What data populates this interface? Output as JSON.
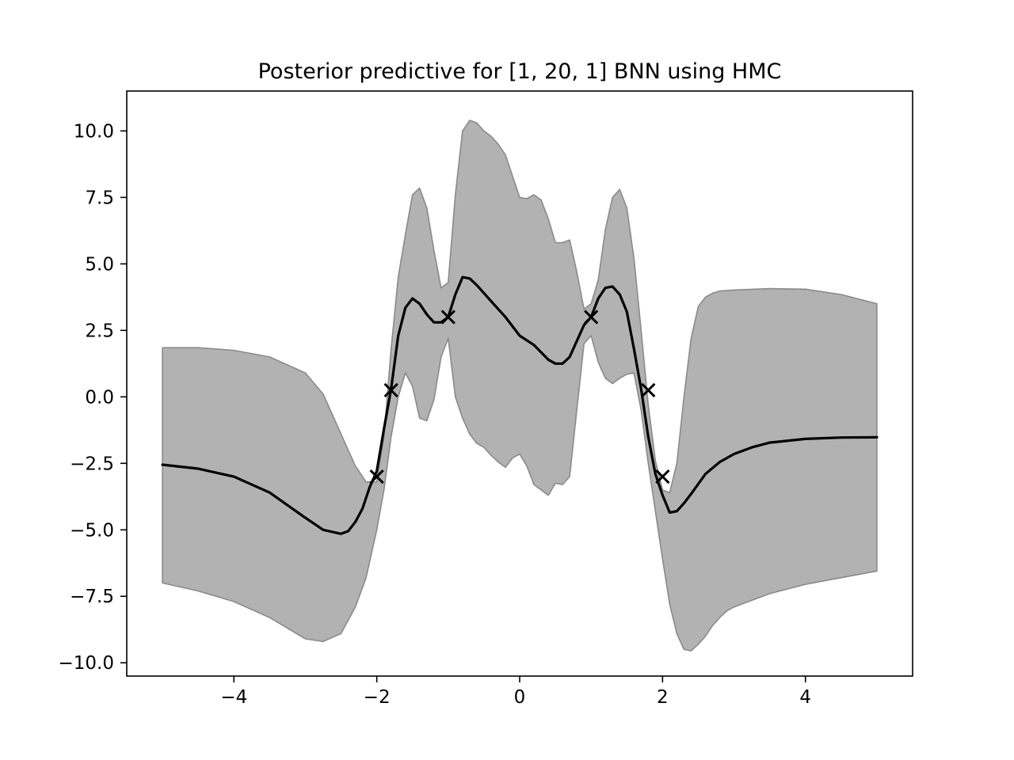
{
  "chart_data": {
    "type": "line",
    "title": "Posterior predictive for [1, 20, 1] BNN using HMC",
    "xlabel": "",
    "ylabel": "",
    "xlim": [
      -5.5,
      5.5
    ],
    "ylim": [
      -10.5,
      11.5
    ],
    "grid": false,
    "legend": "none",
    "xticks": [
      -4,
      -2,
      0,
      2,
      4
    ],
    "xtick_labels": [
      "−4",
      "−2",
      "0",
      "2",
      "4"
    ],
    "yticks": [
      -10,
      -7.5,
      -5,
      -2.5,
      0,
      2.5,
      5,
      7.5,
      10
    ],
    "ytick_labels": [
      "−10.0",
      "−7.5",
      "−5.0",
      "−2.5",
      "0.0",
      "2.5",
      "5.0",
      "7.5",
      "10.0"
    ],
    "colors": {
      "mean": "#000000",
      "band_fill": "#b2b2b2",
      "band_edge": "#8a8a8a",
      "observations": "#000000"
    },
    "band_upper": {
      "x": [
        -5.0,
        -4.5,
        -4.0,
        -3.5,
        -3.0,
        -2.75,
        -2.5,
        -2.3,
        -2.15,
        -2.0,
        -1.9,
        -1.8,
        -1.7,
        -1.6,
        -1.5,
        -1.4,
        -1.3,
        -1.2,
        -1.1,
        -1.0,
        -0.9,
        -0.8,
        -0.7,
        -0.6,
        -0.5,
        -0.4,
        -0.3,
        -0.2,
        -0.1,
        0.0,
        0.1,
        0.2,
        0.3,
        0.4,
        0.5,
        0.6,
        0.7,
        0.8,
        0.9,
        1.0,
        1.1,
        1.2,
        1.3,
        1.4,
        1.5,
        1.6,
        1.7,
        1.8,
        1.9,
        2.0,
        2.1,
        2.2,
        2.3,
        2.4,
        2.5,
        2.6,
        2.7,
        2.8,
        2.9,
        3.0,
        3.5,
        4.0,
        4.5,
        5.0
      ],
      "y": [
        1.85,
        1.85,
        1.75,
        1.5,
        0.9,
        0.1,
        -1.4,
        -2.6,
        -3.2,
        -3.2,
        -1.5,
        1.8,
        4.5,
        6.1,
        7.6,
        7.85,
        7.1,
        5.5,
        4.1,
        4.3,
        7.6,
        10.0,
        10.4,
        10.3,
        10.0,
        9.8,
        9.5,
        9.1,
        8.3,
        7.5,
        7.45,
        7.6,
        7.4,
        6.7,
        5.8,
        5.8,
        5.9,
        4.7,
        3.3,
        3.5,
        4.4,
        6.3,
        7.5,
        7.8,
        7.1,
        5.2,
        2.5,
        -0.3,
        -2.4,
        -3.5,
        -3.6,
        -2.5,
        0.0,
        2.2,
        3.4,
        3.75,
        3.9,
        3.98,
        4.0,
        4.02,
        4.07,
        4.05,
        3.85,
        3.5
      ]
    },
    "band_lower": {
      "x": [
        -5.0,
        -4.5,
        -4.0,
        -3.5,
        -3.0,
        -2.75,
        -2.5,
        -2.3,
        -2.15,
        -2.0,
        -1.9,
        -1.8,
        -1.7,
        -1.6,
        -1.5,
        -1.4,
        -1.3,
        -1.2,
        -1.1,
        -1.0,
        -0.9,
        -0.8,
        -0.7,
        -0.6,
        -0.5,
        -0.4,
        -0.3,
        -0.2,
        -0.1,
        0.0,
        0.1,
        0.2,
        0.3,
        0.4,
        0.5,
        0.6,
        0.7,
        0.8,
        0.9,
        1.0,
        1.1,
        1.2,
        1.3,
        1.4,
        1.5,
        1.6,
        1.7,
        1.8,
        1.9,
        2.0,
        2.1,
        2.2,
        2.3,
        2.4,
        2.5,
        2.6,
        2.7,
        2.8,
        2.9,
        3.0,
        3.5,
        4.0,
        4.5,
        5.0
      ],
      "y": [
        -7.0,
        -7.3,
        -7.7,
        -8.3,
        -9.1,
        -9.2,
        -8.9,
        -7.9,
        -6.8,
        -5.0,
        -3.5,
        -1.5,
        0.0,
        0.9,
        0.4,
        -0.8,
        -0.9,
        -0.1,
        1.5,
        2.2,
        0.0,
        -0.8,
        -1.4,
        -1.75,
        -1.9,
        -2.2,
        -2.45,
        -2.65,
        -2.3,
        -2.15,
        -2.6,
        -3.3,
        -3.5,
        -3.7,
        -3.25,
        -3.3,
        -3.0,
        -0.5,
        2.0,
        2.3,
        1.3,
        0.7,
        0.5,
        0.7,
        0.85,
        0.9,
        -0.5,
        -2.5,
        -4.3,
        -6.1,
        -7.8,
        -8.9,
        -9.5,
        -9.55,
        -9.3,
        -9.0,
        -8.6,
        -8.3,
        -8.05,
        -7.9,
        -7.4,
        -7.05,
        -6.8,
        -6.55
      ]
    },
    "mean": {
      "x": [
        -5.0,
        -4.5,
        -4.0,
        -3.5,
        -3.0,
        -2.75,
        -2.5,
        -2.4,
        -2.3,
        -2.2,
        -2.1,
        -2.0,
        -1.9,
        -1.8,
        -1.7,
        -1.6,
        -1.5,
        -1.4,
        -1.3,
        -1.2,
        -1.1,
        -1.0,
        -0.9,
        -0.8,
        -0.7,
        -0.6,
        -0.4,
        -0.2,
        0.0,
        0.2,
        0.4,
        0.5,
        0.6,
        0.7,
        0.8,
        0.9,
        1.0,
        1.1,
        1.2,
        1.3,
        1.4,
        1.5,
        1.6,
        1.7,
        1.8,
        1.9,
        2.0,
        2.1,
        2.2,
        2.3,
        2.4,
        2.6,
        2.8,
        3.0,
        3.25,
        3.5,
        4.0,
        4.5,
        5.0
      ],
      "y": [
        -2.55,
        -2.7,
        -3.0,
        -3.6,
        -4.55,
        -5.0,
        -5.15,
        -5.05,
        -4.7,
        -4.2,
        -3.4,
        -2.8,
        -1.2,
        0.3,
        2.3,
        3.35,
        3.7,
        3.5,
        3.1,
        2.8,
        2.8,
        3.0,
        3.85,
        4.5,
        4.45,
        4.2,
        3.6,
        3.0,
        2.3,
        1.95,
        1.4,
        1.25,
        1.25,
        1.5,
        2.1,
        2.7,
        3.0,
        3.7,
        4.1,
        4.15,
        3.85,
        3.2,
        1.8,
        0.3,
        -1.5,
        -2.9,
        -3.7,
        -4.35,
        -4.3,
        -4.0,
        -3.65,
        -2.9,
        -2.45,
        -2.15,
        -1.9,
        -1.72,
        -1.58,
        -1.53,
        -1.52
      ]
    },
    "observations": {
      "x": [
        -2.0,
        -1.8,
        -1.0,
        1.0,
        1.8,
        2.0
      ],
      "y": [
        -3.0,
        0.25,
        3.0,
        3.0,
        0.25,
        -3.0
      ]
    }
  }
}
